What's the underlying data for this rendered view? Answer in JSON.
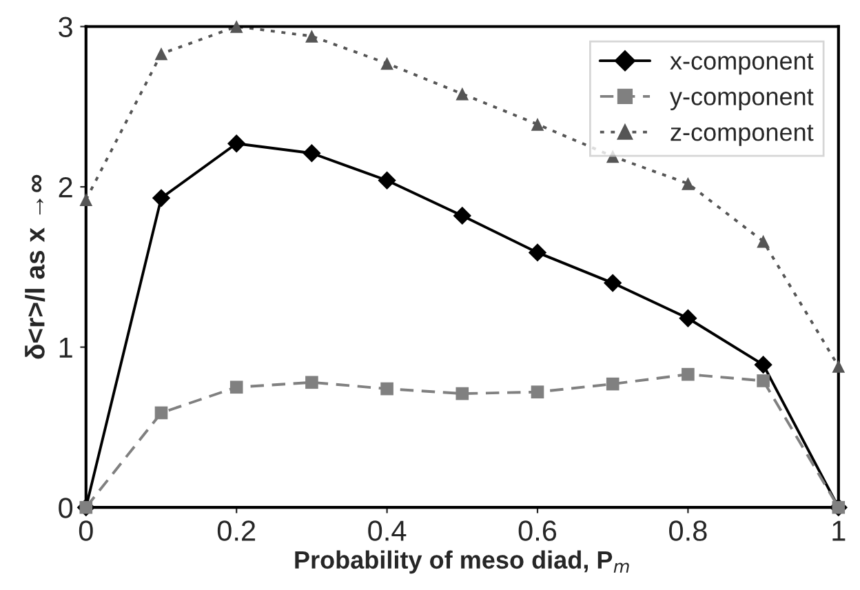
{
  "chart_data": {
    "type": "line",
    "xlabel": "Probability of meso diad, P$_{m}$",
    "ylabel": "δ<r>/l as x →∞",
    "x": [
      0,
      0.1,
      0.2,
      0.3,
      0.4,
      0.5,
      0.6,
      0.7,
      0.8,
      0.9,
      1
    ],
    "series": [
      {
        "name": "x-component",
        "color": "#000000",
        "marker": "diamond",
        "line_style": "solid",
        "values": [
          0,
          1.93,
          2.27,
          2.21,
          2.04,
          1.82,
          1.59,
          1.4,
          1.18,
          0.89,
          0
        ]
      },
      {
        "name": "y-component",
        "color": "#808080",
        "marker": "square",
        "line_style": "dashed",
        "values": [
          0,
          0.59,
          0.75,
          0.78,
          0.74,
          0.71,
          0.72,
          0.77,
          0.83,
          0.79,
          0
        ]
      },
      {
        "name": "z-component",
        "color": "#555555",
        "marker": "triangle",
        "line_style": "dotted",
        "values": [
          1.92,
          2.83,
          3.0,
          2.94,
          2.77,
          2.58,
          2.39,
          2.19,
          2.02,
          1.66,
          0.88
        ]
      }
    ],
    "xlim": [
      0,
      1
    ],
    "xticks": [
      0,
      0.2,
      0.4,
      0.6,
      0.8,
      1
    ],
    "ylim": [
      0,
      3
    ],
    "yticks": [
      0,
      1,
      2,
      3
    ],
    "grid": false,
    "legend": "top right"
  }
}
